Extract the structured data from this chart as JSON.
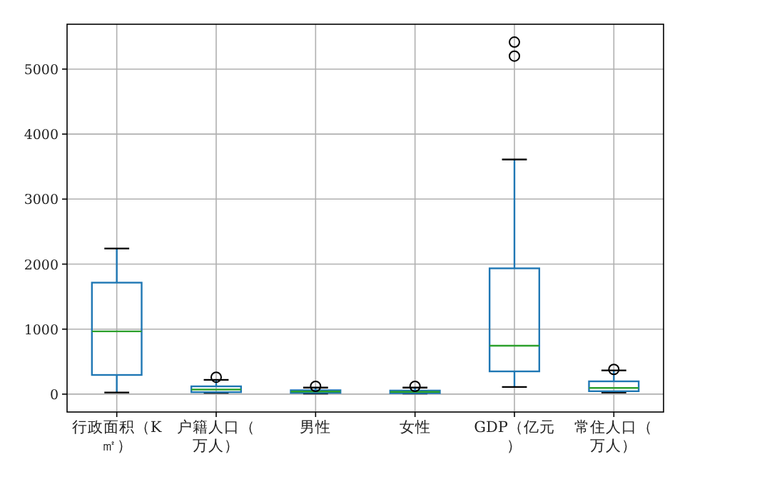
{
  "chart_data": {
    "type": "box",
    "categories": [
      "行政面积（K㎡）",
      "户籍人口（万人）",
      "男性",
      "女性",
      "GDP（亿元）",
      "常住人口（万人）"
    ],
    "color": "#1f77b4",
    "boxes": [
      {
        "low": 25,
        "q1": 295,
        "median": 965,
        "q3": 1715,
        "high": 2240
      },
      {
        "low": 20,
        "q1": 30,
        "median": 70,
        "q3": 120,
        "high": 220,
        "outliers": [
          260
        ]
      },
      {
        "low": 10,
        "q1": 20,
        "median": 40,
        "q3": 60,
        "high": 100,
        "outliers": [
          120
        ]
      },
      {
        "low": 10,
        "q1": 15,
        "median": 35,
        "q3": 55,
        "high": 100,
        "outliers": [
          120
        ]
      },
      {
        "low": 110,
        "q1": 350,
        "median": 745,
        "q3": 1935,
        "high": 3610,
        "outliers": [
          5200,
          5415
        ]
      },
      {
        "low": 25,
        "q1": 45,
        "median": 95,
        "q3": 197,
        "high": 365,
        "outliers": [
          380
        ]
      }
    ],
    "ylim": [
      -275,
      5690
    ],
    "yticks": [
      0,
      1000,
      2000,
      3000,
      4000,
      5000
    ],
    "grid": true,
    "marker": "circle"
  }
}
